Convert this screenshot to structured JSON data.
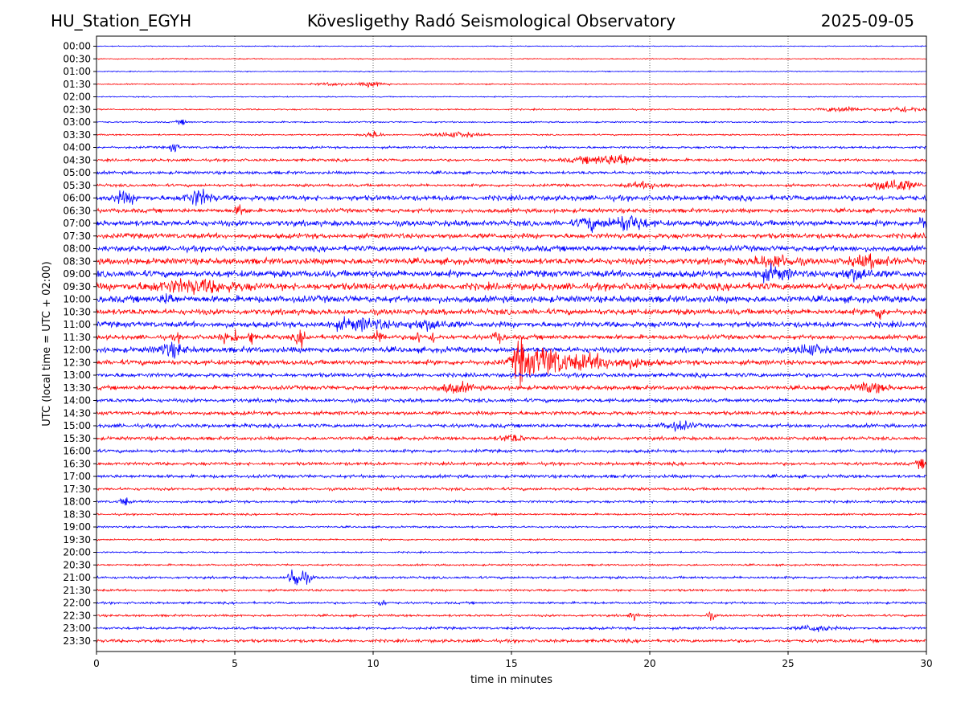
{
  "header": {
    "station": "HU_Station_EGYH",
    "title": "Kövesligethy Radó Seismological Observatory",
    "date": "2025-09-05"
  },
  "chart_data": {
    "type": "line",
    "title": "Kövesligethy Radó Seismological Observatory",
    "xlabel": "time in minutes",
    "ylabel": "UTC (local time = UTC + 02:00)",
    "xlim": [
      0,
      30
    ],
    "xticks": [
      "0",
      "5",
      "10",
      "15",
      "20",
      "25",
      "30"
    ],
    "grid": "vertical dotted lines at x = 5, 10, 15, 20, 25",
    "colors": {
      "even_rows": "#0000ff",
      "odd_rows": "#ff0000"
    },
    "rows": [
      {
        "label": "00:00",
        "noise": 0.05
      },
      {
        "label": "00:30",
        "noise": 0.06
      },
      {
        "label": "01:00",
        "noise": 0.05
      },
      {
        "label": "01:30",
        "noise": 0.06,
        "events": [
          {
            "t": 10.0,
            "amp": 0.28,
            "dur": 1.0
          },
          {
            "t": 8.5,
            "amp": 0.15,
            "dur": 1.2
          }
        ]
      },
      {
        "label": "02:00",
        "noise": 0.06
      },
      {
        "label": "02:30",
        "noise": 0.08,
        "events": [
          {
            "t": 27.0,
            "amp": 0.3,
            "dur": 1.5
          },
          {
            "t": 29.2,
            "amp": 0.3,
            "dur": 1.3
          }
        ]
      },
      {
        "label": "03:00",
        "noise": 0.08,
        "events": [
          {
            "t": 3.1,
            "amp": 0.25,
            "dur": 0.4
          }
        ]
      },
      {
        "label": "03:30",
        "noise": 0.08,
        "events": [
          {
            "t": 10.0,
            "amp": 0.35,
            "dur": 0.6
          },
          {
            "t": 13.0,
            "amp": 0.3,
            "dur": 1.5
          }
        ]
      },
      {
        "label": "04:00",
        "noise": 0.12,
        "events": [
          {
            "t": 2.8,
            "amp": 0.55,
            "dur": 0.3
          }
        ]
      },
      {
        "label": "04:30",
        "noise": 0.14,
        "events": [
          {
            "t": 18.5,
            "amp": 0.45,
            "dur": 2.5
          },
          {
            "t": 19.0,
            "amp": 0.5,
            "dur": 0.3
          }
        ]
      },
      {
        "label": "05:00",
        "noise": 0.16
      },
      {
        "label": "05:30",
        "noise": 0.15,
        "events": [
          {
            "t": 28.8,
            "amp": 0.7,
            "dur": 1.5
          },
          {
            "t": 20.0,
            "amp": 0.3,
            "dur": 1.5
          }
        ]
      },
      {
        "label": "06:00",
        "noise": 0.28,
        "events": [
          {
            "t": 3.7,
            "amp": 0.8,
            "dur": 0.9
          },
          {
            "t": 1.0,
            "amp": 0.5,
            "dur": 0.8
          }
        ]
      },
      {
        "label": "06:30",
        "noise": 0.22,
        "events": [
          {
            "t": 5.2,
            "amp": 0.5,
            "dur": 0.4
          }
        ]
      },
      {
        "label": "07:00",
        "noise": 0.3,
        "events": [
          {
            "t": 19.2,
            "amp": 0.8,
            "dur": 1.3
          },
          {
            "t": 29.9,
            "amp": 0.8,
            "dur": 0.3
          },
          {
            "t": 17.8,
            "amp": 0.6,
            "dur": 0.8
          }
        ]
      },
      {
        "label": "07:30",
        "noise": 0.27
      },
      {
        "label": "08:00",
        "noise": 0.3
      },
      {
        "label": "08:30",
        "noise": 0.33,
        "events": [
          {
            "t": 24.5,
            "amp": 0.55,
            "dur": 1.5
          },
          {
            "t": 28.0,
            "amp": 0.5,
            "dur": 1.5
          }
        ]
      },
      {
        "label": "09:00",
        "noise": 0.36,
        "events": [
          {
            "t": 24.5,
            "amp": 0.6,
            "dur": 1.2
          },
          {
            "t": 27.5,
            "amp": 0.55,
            "dur": 1.2
          }
        ]
      },
      {
        "label": "09:30",
        "noise": 0.38,
        "events": [
          {
            "t": 3.5,
            "amp": 0.55,
            "dur": 3.0
          }
        ]
      },
      {
        "label": "10:00",
        "noise": 0.36,
        "events": [
          {
            "t": 2.6,
            "amp": 0.6,
            "dur": 0.4
          }
        ]
      },
      {
        "label": "10:30",
        "noise": 0.3,
        "events": [
          {
            "t": 28.3,
            "amp": 0.6,
            "dur": 0.4
          }
        ]
      },
      {
        "label": "11:00",
        "noise": 0.3,
        "events": [
          {
            "t": 9.5,
            "amp": 0.55,
            "dur": 2.0
          },
          {
            "t": 12.0,
            "amp": 0.45,
            "dur": 1.5
          }
        ]
      },
      {
        "label": "11:30",
        "noise": 0.24,
        "events": [
          {
            "t": 2.9,
            "amp": 0.5,
            "dur": 0.2
          },
          {
            "t": 4.6,
            "amp": 0.7,
            "dur": 0.2
          },
          {
            "t": 5.0,
            "amp": 0.7,
            "dur": 0.2
          },
          {
            "t": 5.6,
            "amp": 0.75,
            "dur": 0.2
          },
          {
            "t": 7.4,
            "amp": 0.75,
            "dur": 0.4
          },
          {
            "t": 10.2,
            "amp": 0.7,
            "dur": 0.4
          },
          {
            "t": 11.6,
            "amp": 0.55,
            "dur": 0.3
          },
          {
            "t": 12.2,
            "amp": 0.5,
            "dur": 0.3
          },
          {
            "t": 14.5,
            "amp": 0.45,
            "dur": 0.4
          }
        ]
      },
      {
        "label": "12:00",
        "noise": 0.3,
        "events": [
          {
            "t": 2.7,
            "amp": 0.6,
            "dur": 1.0
          },
          {
            "t": 25.8,
            "amp": 0.5,
            "dur": 1.0
          }
        ]
      },
      {
        "label": "12:30",
        "noise": 0.26,
        "events": [
          {
            "t": 15.3,
            "amp": 2.0,
            "dur": 0.5
          },
          {
            "t": 16.2,
            "amp": 1.6,
            "dur": 1.6
          },
          {
            "t": 17.8,
            "amp": 0.7,
            "dur": 1.6
          },
          {
            "t": 19.3,
            "amp": 0.4,
            "dur": 1.5
          }
        ]
      },
      {
        "label": "13:00",
        "noise": 0.22
      },
      {
        "label": "13:30",
        "noise": 0.22,
        "events": [
          {
            "t": 13.0,
            "amp": 0.45,
            "dur": 1.3
          },
          {
            "t": 28.0,
            "amp": 0.45,
            "dur": 1.2
          }
        ]
      },
      {
        "label": "14:00",
        "noise": 0.2
      },
      {
        "label": "14:30",
        "noise": 0.2
      },
      {
        "label": "15:00",
        "noise": 0.2,
        "events": [
          {
            "t": 21.0,
            "amp": 0.45,
            "dur": 1.0
          }
        ]
      },
      {
        "label": "15:30",
        "noise": 0.18,
        "events": [
          {
            "t": 15.0,
            "amp": 0.4,
            "dur": 0.8
          }
        ]
      },
      {
        "label": "16:00",
        "noise": 0.17
      },
      {
        "label": "16:30",
        "noise": 0.17,
        "events": [
          {
            "t": 29.8,
            "amp": 0.5,
            "dur": 0.3
          }
        ]
      },
      {
        "label": "17:00",
        "noise": 0.17
      },
      {
        "label": "17:30",
        "noise": 0.15
      },
      {
        "label": "18:00",
        "noise": 0.13,
        "events": [
          {
            "t": 1.0,
            "amp": 0.55,
            "dur": 0.3
          }
        ]
      },
      {
        "label": "18:30",
        "noise": 0.1
      },
      {
        "label": "19:00",
        "noise": 0.1
      },
      {
        "label": "19:30",
        "noise": 0.09
      },
      {
        "label": "20:00",
        "noise": 0.08
      },
      {
        "label": "20:30",
        "noise": 0.1
      },
      {
        "label": "21:00",
        "noise": 0.13,
        "events": [
          {
            "t": 7.1,
            "amp": 1.4,
            "dur": 0.25
          },
          {
            "t": 7.4,
            "amp": 0.9,
            "dur": 0.6
          }
        ]
      },
      {
        "label": "21:30",
        "noise": 0.12
      },
      {
        "label": "22:00",
        "noise": 0.12,
        "events": [
          {
            "t": 10.3,
            "amp": 0.35,
            "dur": 0.3
          }
        ]
      },
      {
        "label": "22:30",
        "noise": 0.12,
        "events": [
          {
            "t": 19.4,
            "amp": 0.4,
            "dur": 0.3
          },
          {
            "t": 22.2,
            "amp": 0.4,
            "dur": 0.3
          }
        ]
      },
      {
        "label": "23:00",
        "noise": 0.14,
        "events": [
          {
            "t": 26.0,
            "amp": 0.35,
            "dur": 1.0
          }
        ]
      },
      {
        "label": "23:30",
        "noise": 0.17
      }
    ]
  }
}
